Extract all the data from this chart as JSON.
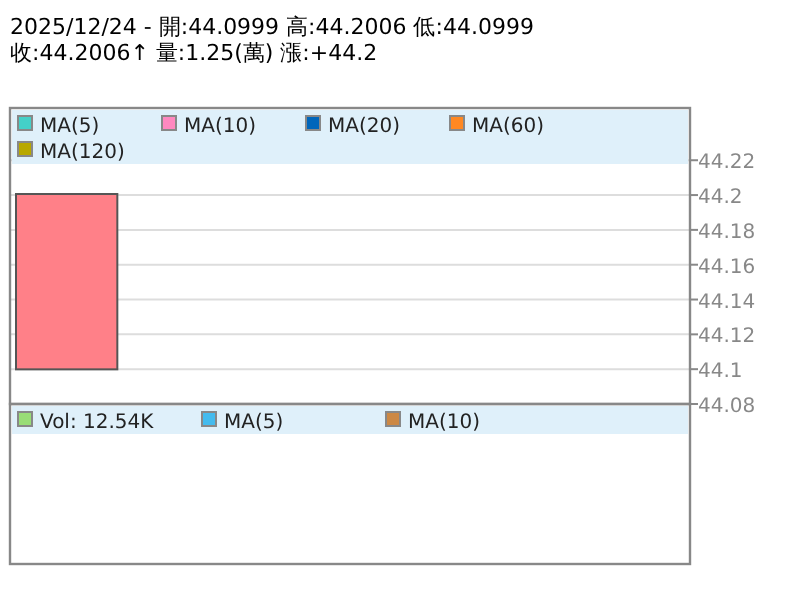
{
  "chart_data": [
    {
      "type": "candlestick",
      "title": "2025/12/24 - 開:44.0999 高:44.2006 低:44.0999",
      "subtitle": "收:44.2006↑ 量:1.25(萬) 漲:+44.2",
      "categories": [
        null,
        null,
        null,
        null,
        null,
        null
      ],
      "ohlc": [
        [
          44.0999,
          44.2006,
          44.0999,
          44.2006
        ],
        null,
        null,
        null,
        null,
        null
      ],
      "color": "#ff8088",
      "series": [
        {
          "name": "MA(5)",
          "color": "#44d0c8",
          "values": [
            null,
            null,
            null,
            null,
            null,
            null
          ]
        },
        {
          "name": "MA(10)",
          "color": "#ff88c0",
          "values": [
            null,
            null,
            null,
            null,
            null,
            null
          ]
        },
        {
          "name": "MA(20)",
          "color": "#0066bb",
          "values": [
            null,
            null,
            null,
            null,
            null,
            null
          ]
        },
        {
          "name": "MA(60)",
          "color": "#ff8822",
          "values": [
            null,
            null,
            null,
            null,
            null,
            null
          ]
        },
        {
          "name": "MA(120)",
          "color": "#b8a800",
          "values": [
            null,
            null,
            null,
            null,
            null,
            null
          ]
        }
      ],
      "ylim": [
        44.08,
        44.25
      ],
      "yticks": [
        44.08,
        44.1,
        44.12,
        44.14,
        44.16,
        44.18,
        {
          "value": 44.2,
          "label": "44.2"
        },
        44.22
      ],
      "grid": "y",
      "legend": "top"
    },
    {
      "type": "other",
      "series": [
        {
          "name": "Vol: 12.54K",
          "color": "#99dd77"
        },
        {
          "name": "MA(5)",
          "color": "#44bbee"
        },
        {
          "name": "MA(10)",
          "color": "#cc8844"
        }
      ],
      "legend": "top"
    }
  ]
}
